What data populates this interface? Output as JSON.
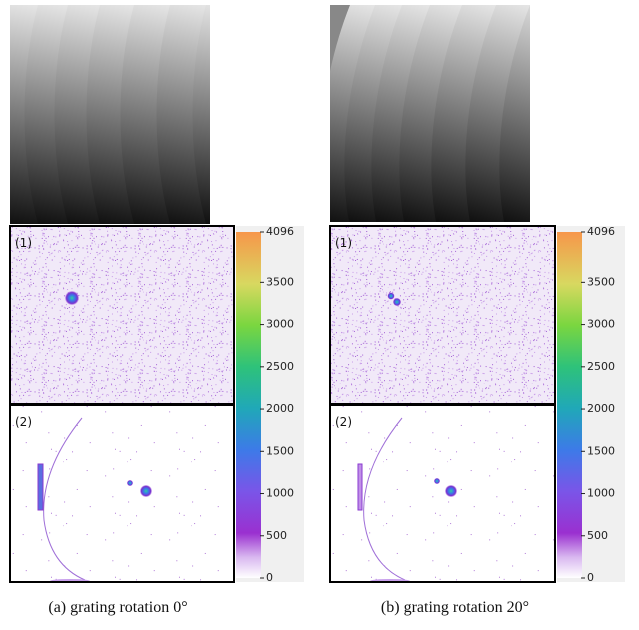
{
  "panels": [
    {
      "label_1": "(1)",
      "label_2": "(2)",
      "colorbar_ticks": [
        4096,
        3500,
        3000,
        2500,
        2000,
        1500,
        1000,
        500,
        0
      ],
      "caption": "(a) grating rotation 0°"
    },
    {
      "label_1": "(1)",
      "label_2": "(2)",
      "colorbar_ticks": [
        4096,
        3500,
        3000,
        2500,
        2000,
        1500,
        1000,
        500,
        0
      ],
      "caption": "(b) grating rotation 20°"
    }
  ]
}
